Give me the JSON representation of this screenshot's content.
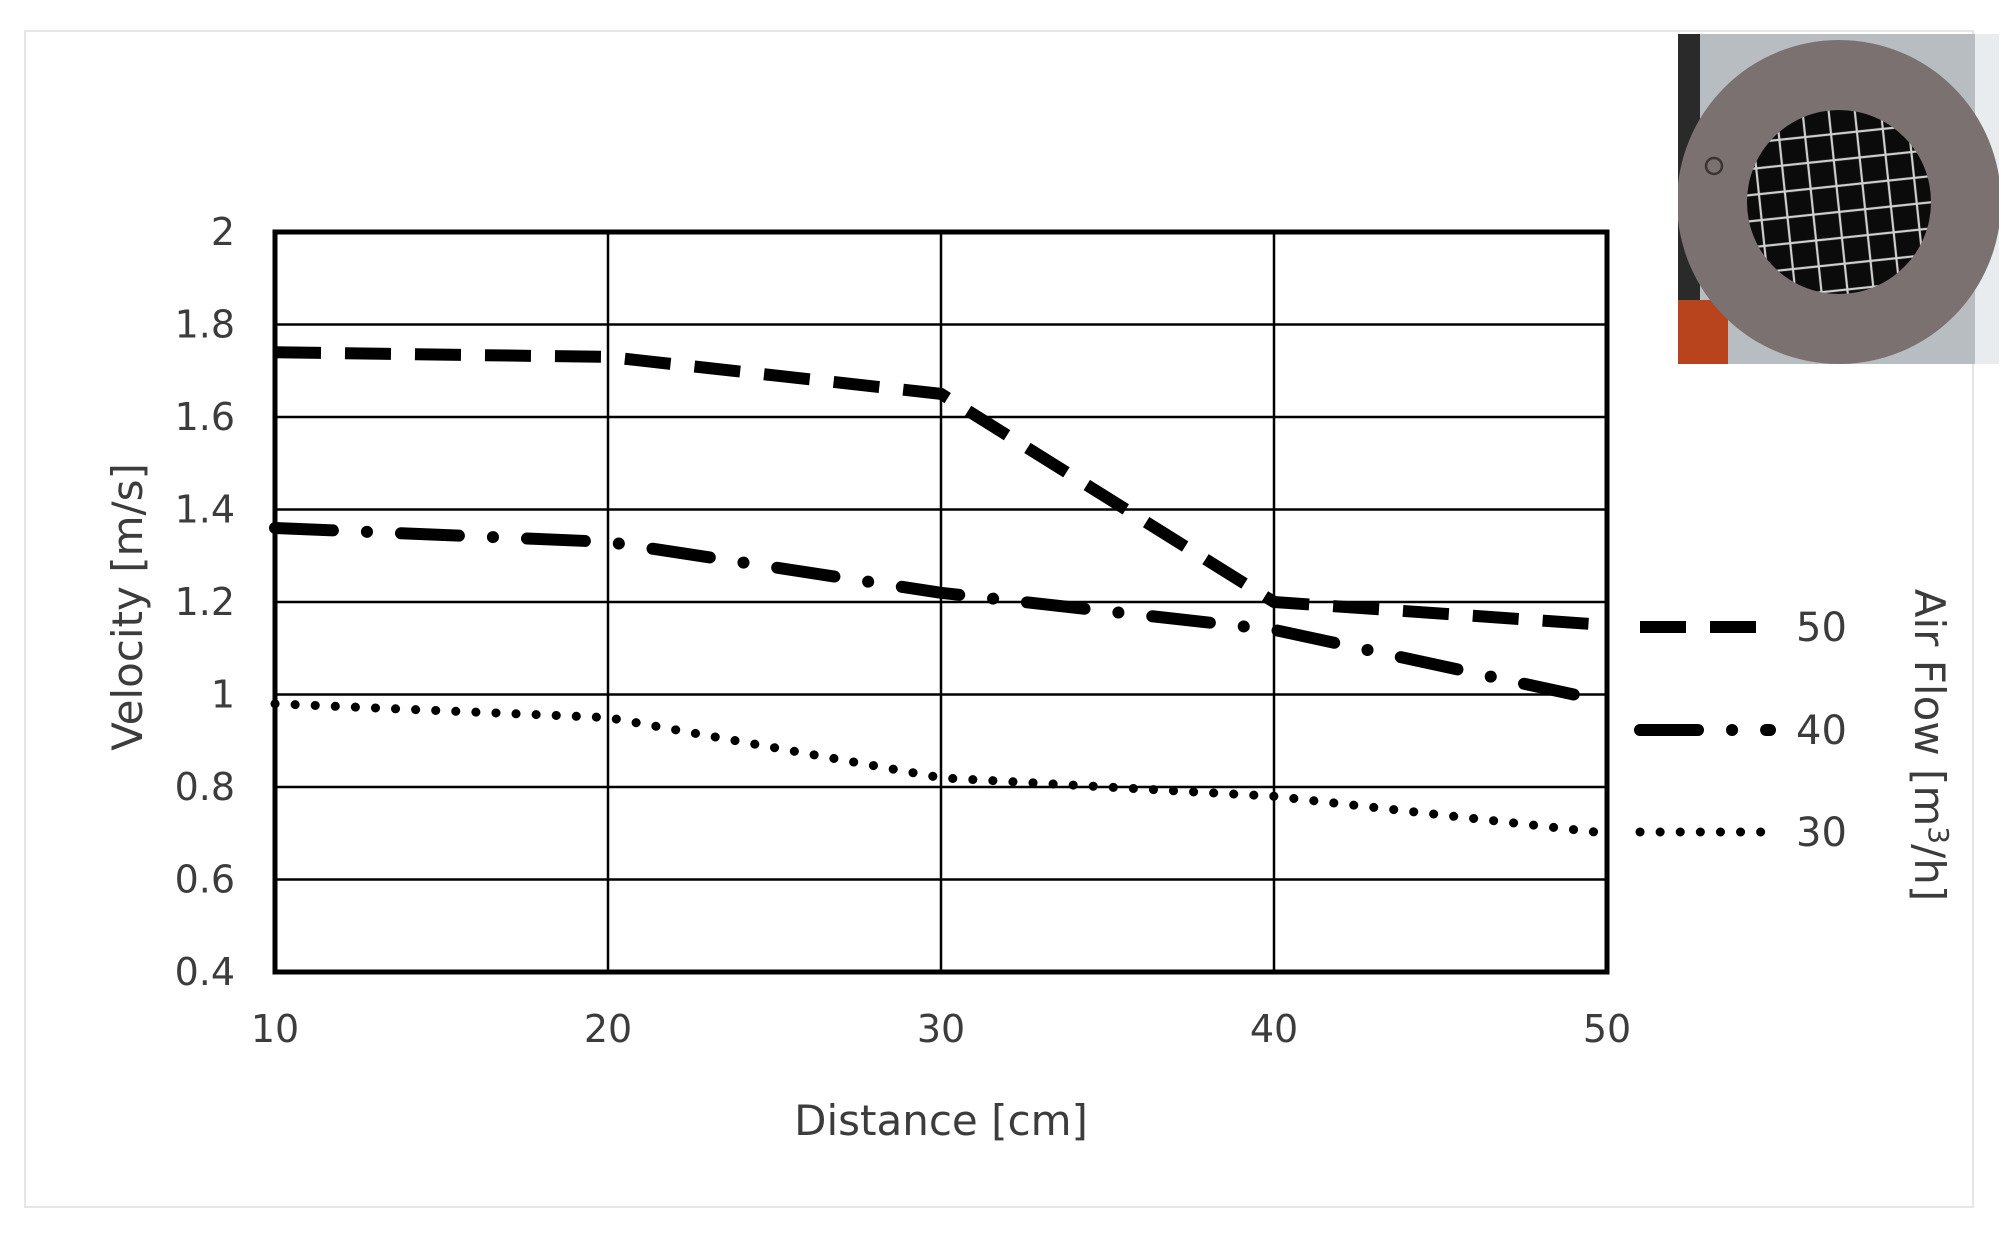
{
  "chart_data": {
    "type": "line",
    "title": "",
    "xlabel": "Distance [cm]",
    "ylabel": "Velocity [m/s]",
    "x": [
      10,
      20,
      30,
      40,
      50
    ],
    "xlim": [
      10,
      50
    ],
    "ylim": [
      0.4,
      2
    ],
    "xticks": [
      "10",
      "20",
      "30",
      "40",
      "50"
    ],
    "yticks": [
      "0.4",
      "0.6",
      "0.8",
      "1",
      "1.2",
      "1.4",
      "1.6",
      "1.8",
      "2"
    ],
    "grid": true,
    "legend": {
      "title": "Air Flow [m³/h]",
      "title_parts": {
        "before": "Air Flow  [m",
        "sup": "3",
        "after": "/h]"
      },
      "position": "right"
    },
    "series": [
      {
        "name": "50",
        "style": "dashed",
        "color": "#000000",
        "points": [
          [
            10,
            1.74
          ],
          [
            20,
            1.73
          ],
          [
            30,
            1.65
          ],
          [
            40,
            1.2
          ],
          [
            50,
            1.15
          ]
        ]
      },
      {
        "name": "40",
        "style": "dash-dot",
        "color": "#000000",
        "points": [
          [
            10,
            1.36
          ],
          [
            20,
            1.33
          ],
          [
            30,
            1.22
          ],
          [
            40,
            1.14
          ],
          [
            49,
            1.0
          ]
        ]
      },
      {
        "name": "30",
        "style": "dotted",
        "color": "#000000",
        "points": [
          [
            10,
            0.98
          ],
          [
            20,
            0.95
          ],
          [
            30,
            0.82
          ],
          [
            40,
            0.78
          ],
          [
            50,
            0.7
          ]
        ]
      }
    ]
  },
  "inset_photo": {
    "name": "air diffuser photo",
    "colors": {
      "ring": "#7a7170",
      "background": "#b8bdc2",
      "mesh": "#0b0b0b"
    }
  }
}
